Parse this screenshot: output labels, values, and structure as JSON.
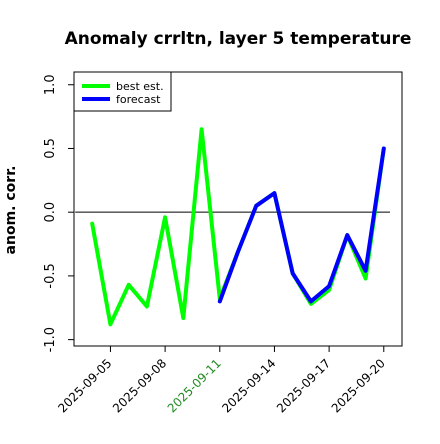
{
  "chart_data": {
    "type": "line",
    "title": "Anomaly crrltn, layer 5 temperature",
    "xlabel": "",
    "ylabel": "anom. corr.",
    "ylim": [
      -1.05,
      1.1
    ],
    "yticks": [
      -1.0,
      -0.5,
      0.0,
      0.5,
      1.0
    ],
    "ytick_labels": [
      "-1.0",
      "-0.5",
      "0.0",
      "0.5",
      "1.0"
    ],
    "xlim": [
      "2025-09-03",
      "2025-09-21"
    ],
    "xticks": [
      "2025-09-05",
      "2025-09-08",
      "2025-09-11",
      "2025-09-14",
      "2025-09-17",
      "2025-09-20"
    ],
    "highlighted_xtick": "2025-09-11",
    "reference_line_y": 0.0,
    "grid": false,
    "legend": {
      "position": "top-left",
      "entries": [
        "best est.",
        "forecast"
      ]
    },
    "colors": {
      "best_est": "#00ff00",
      "forecast": "#0000ff",
      "highlight_tick": "#228b22",
      "zero_line": "#000000"
    },
    "series": [
      {
        "name": "best est.",
        "x": [
          "2025-09-04",
          "2025-09-05",
          "2025-09-06",
          "2025-09-07",
          "2025-09-08",
          "2025-09-09",
          "2025-09-10",
          "2025-09-11",
          "2025-09-12",
          "2025-09-13",
          "2025-09-14",
          "2025-09-15",
          "2025-09-16",
          "2025-09-17",
          "2025-09-18",
          "2025-09-19",
          "2025-09-20"
        ],
        "values": [
          -0.09,
          -0.88,
          -0.57,
          -0.74,
          -0.04,
          -0.83,
          0.65,
          -0.68,
          -0.31,
          0.05,
          0.15,
          -0.48,
          -0.72,
          -0.61,
          -0.18,
          -0.52,
          0.5
        ]
      },
      {
        "name": "forecast",
        "x": [
          "2025-09-11",
          "2025-09-12",
          "2025-09-13",
          "2025-09-14",
          "2025-09-15",
          "2025-09-16",
          "2025-09-17",
          "2025-09-18",
          "2025-09-19",
          "2025-09-20"
        ],
        "values": [
          -0.7,
          -0.31,
          0.05,
          0.15,
          -0.48,
          -0.7,
          -0.58,
          -0.18,
          -0.46,
          0.5
        ]
      }
    ]
  }
}
